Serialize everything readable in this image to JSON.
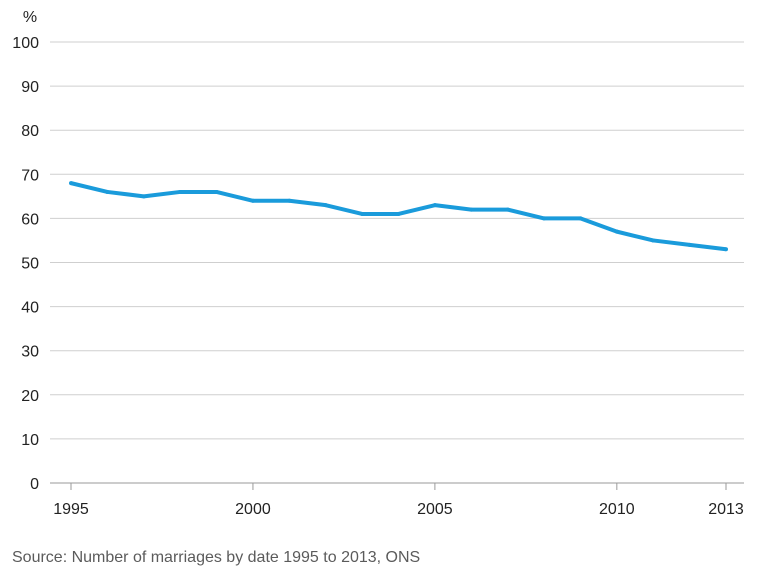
{
  "chart_data": {
    "type": "line",
    "title": "",
    "xlabel": "",
    "ylabel": "%",
    "ylim": [
      0,
      100
    ],
    "xlim": [
      1995,
      2013
    ],
    "grid": true,
    "y_ticks": [
      "0",
      "10",
      "20",
      "30",
      "40",
      "50",
      "60",
      "70",
      "80",
      "90",
      "100"
    ],
    "x_ticks": [
      "1995",
      "2000",
      "2005",
      "2010",
      "2013"
    ],
    "series": [
      {
        "color": "#1a9bdb",
        "x": [
          1995,
          1996,
          1997,
          1998,
          1999,
          2000,
          2001,
          2002,
          2003,
          2004,
          2005,
          2006,
          2007,
          2008,
          2009,
          2010,
          2011,
          2012,
          2013
        ],
        "values": [
          68,
          66,
          65,
          66,
          66,
          64,
          64,
          63,
          61,
          61,
          63,
          62,
          62,
          60,
          60,
          57,
          55,
          54,
          53
        ]
      }
    ]
  },
  "footer": {
    "source": "Source: Number of marriages by date 1995 to 2013, ONS"
  }
}
